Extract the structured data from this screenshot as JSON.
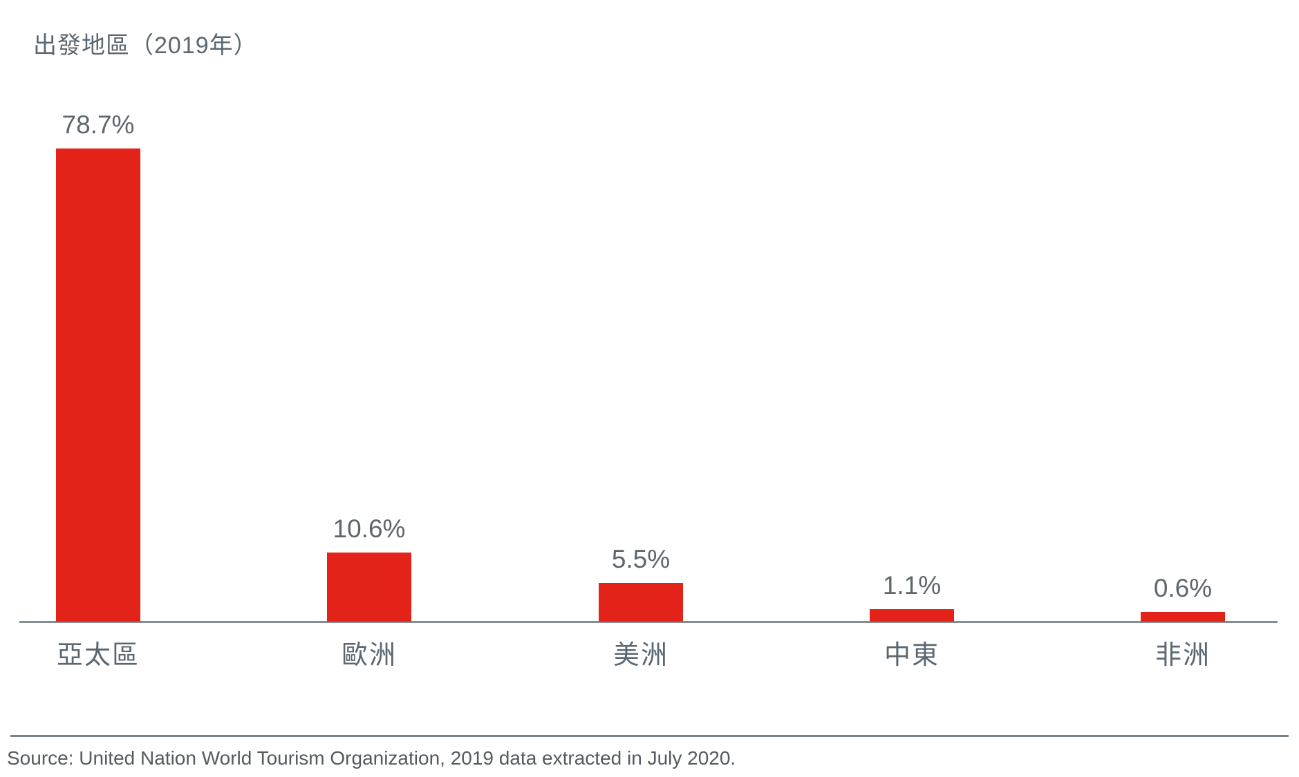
{
  "page": {
    "title": "出發地區（2019年）",
    "source": "Source: United Nation World Tourism Organization, 2019 data extracted in July 2020."
  },
  "colors": {
    "bar": "#E3221A",
    "heading_text": "#5B6770",
    "value_text": "#5D666E",
    "category_text": "#5B6770",
    "source_text": "#545A5F",
    "axis_line": "#848E95",
    "divider_line": "#79838A",
    "background": "#FFFFFF"
  },
  "chart_data": {
    "type": "bar",
    "title": "出發地區（2019年）",
    "categories": [
      "亞太區",
      "歐洲",
      "美洲",
      "中東",
      "非洲"
    ],
    "values": [
      78.7,
      10.6,
      5.5,
      1.1,
      0.6
    ],
    "value_labels": [
      "78.7%",
      "10.6%",
      "5.5%",
      "1.1%",
      "0.6%"
    ],
    "unit": "%",
    "ylim": [
      0,
      80
    ],
    "grid": false,
    "legend": "none",
    "bar_color": "#E3221A",
    "orientation": "vertical",
    "xlabel": "",
    "ylabel": ""
  }
}
